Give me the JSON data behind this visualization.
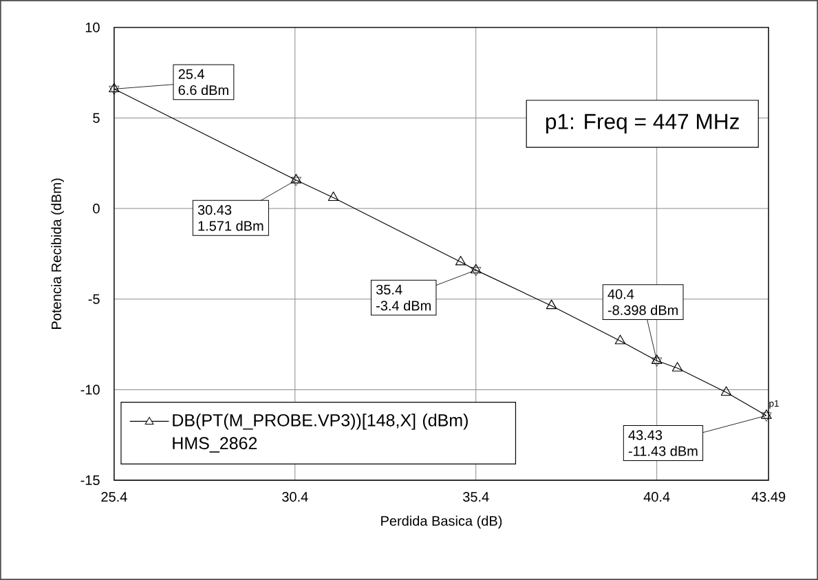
{
  "chart_data": {
    "type": "line",
    "xlabel": "Perdida Basica (dB)",
    "ylabel": "Potencia Recibida (dBm)",
    "xlim": [
      25.4,
      43.49
    ],
    "ylim": [
      -15,
      10
    ],
    "xticks": [
      25.4,
      30.4,
      35.4,
      40.4,
      43.49
    ],
    "yticks": [
      -15,
      -10,
      -5,
      0,
      5,
      10
    ],
    "grid": true,
    "legend": "bottom left",
    "marker": "triangle",
    "series": [
      {
        "name": "DB(PT(M_PROBE.VP3))[148,X] (dBm)",
        "color": "#000000",
        "x": [
          25.4,
          30.43,
          31.46,
          34.98,
          35.4,
          37.49,
          39.39,
          40.4,
          40.97,
          42.32,
          43.43
        ],
        "values": [
          6.6,
          1.571,
          0.6,
          -2.95,
          -3.4,
          -5.37,
          -7.31,
          -8.398,
          -8.81,
          -10.15,
          -11.43
        ]
      },
      {
        "type": "scatter",
        "color": "#000000",
        "x": [
          25.4,
          30.43,
          35.4,
          40.4,
          43.43
        ],
        "values": [
          6.6,
          1.571,
          -3.4,
          -8.398,
          -11.43
        ]
      }
    ],
    "annotations": [
      "p1: Freq = 447 MHz",
      {
        "text": "p1",
        "x": 43.43,
        "y": -11.43
      },
      "HMS_2862",
      {
        "text": "25.4",
        "x": 25.4,
        "y": 6.6
      },
      {
        "text": "6.6 dBm",
        "x": 25.4,
        "y": 6.6
      },
      {
        "text": "30.43",
        "x": 30.43,
        "y": 1.571
      },
      {
        "text": "1.571 dBm",
        "x": 30.43,
        "y": 1.571
      },
      {
        "text": "35.4",
        "x": 35.4,
        "y": -3.4
      },
      {
        "text": "-3.4 dBm",
        "x": 35.4,
        "y": -3.4
      },
      {
        "text": "40.4",
        "x": 40.4,
        "y": -8.398
      },
      {
        "text": "-8.398 dBm",
        "x": 40.4,
        "y": -8.398
      },
      {
        "text": "43.43",
        "x": 43.43,
        "y": -11.43
      },
      {
        "text": "-11.43 dBm",
        "x": 43.43,
        "y": -11.43
      }
    ]
  }
}
